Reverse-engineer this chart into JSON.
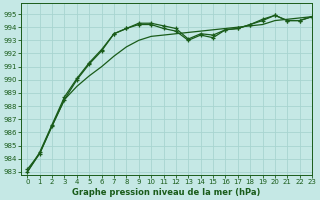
{
  "xlabel": "Graphe pression niveau de la mer (hPa)",
  "bg_color": "#c5e8e5",
  "grid_color": "#a8d4d0",
  "line_color": "#1a5c1a",
  "xlim": [
    -0.5,
    23
  ],
  "ylim": [
    982.8,
    995.8
  ],
  "yticks": [
    983,
    984,
    985,
    986,
    987,
    988,
    989,
    990,
    991,
    992,
    993,
    994,
    995
  ],
  "xticks": [
    0,
    1,
    2,
    3,
    4,
    5,
    6,
    7,
    8,
    9,
    10,
    11,
    12,
    13,
    14,
    15,
    16,
    17,
    18,
    19,
    20,
    21,
    22,
    23
  ],
  "s1_x": [
    0,
    1,
    2,
    3,
    4,
    5,
    6,
    7,
    8,
    9,
    10,
    11,
    12,
    13,
    14,
    15,
    16,
    17,
    18,
    19,
    20,
    21,
    22,
    23
  ],
  "s1_y": [
    983.0,
    984.4,
    986.5,
    988.5,
    989.5,
    990.3,
    991.0,
    991.8,
    992.5,
    993.0,
    993.3,
    993.4,
    993.5,
    993.6,
    993.7,
    993.8,
    993.9,
    994.0,
    994.1,
    994.2,
    994.5,
    994.6,
    994.7,
    994.8
  ],
  "s2_x": [
    0,
    1,
    2,
    3,
    4,
    5,
    6,
    7,
    8,
    9,
    10,
    11,
    12,
    13,
    14,
    15,
    16,
    17,
    18,
    19,
    20,
    21,
    22,
    23
  ],
  "s2_y": [
    983.2,
    984.4,
    986.5,
    988.5,
    990.0,
    991.2,
    992.2,
    993.5,
    993.9,
    994.3,
    994.3,
    994.1,
    993.9,
    993.1,
    993.5,
    993.4,
    993.8,
    993.9,
    994.2,
    994.5,
    994.9,
    994.5,
    994.5,
    994.8
  ],
  "s3_x": [
    0,
    1,
    2,
    3,
    4,
    5,
    6,
    7,
    8,
    9,
    10,
    11,
    12,
    13,
    14,
    15,
    16,
    17,
    18,
    19,
    20,
    21,
    22,
    23
  ],
  "s3_y": [
    983.0,
    984.5,
    986.6,
    988.7,
    990.1,
    991.3,
    992.3,
    993.5,
    993.9,
    994.2,
    994.2,
    993.9,
    993.7,
    993.0,
    993.4,
    993.2,
    993.8,
    993.9,
    994.2,
    994.6,
    994.9,
    994.5,
    994.5,
    994.8
  ]
}
